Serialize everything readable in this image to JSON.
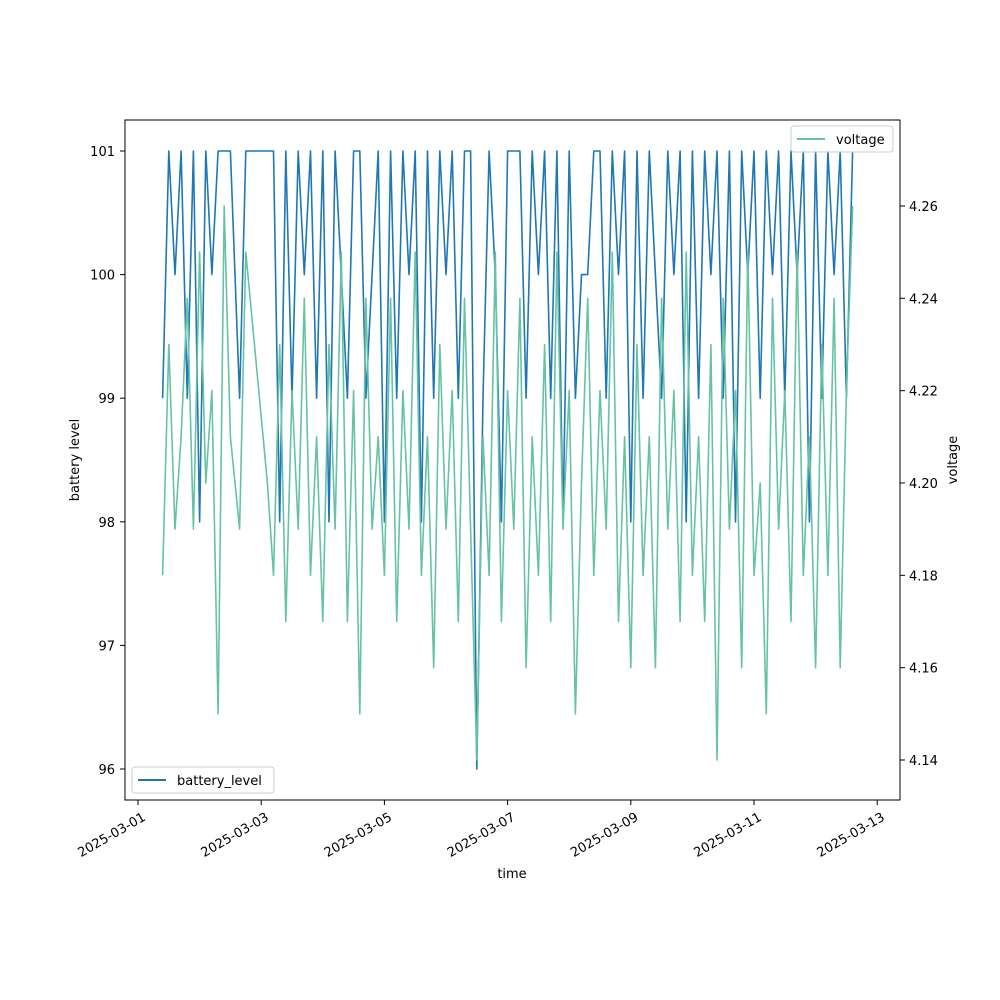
{
  "chart_data": {
    "type": "line",
    "xlabel": "time",
    "ylabel_left": "battery level",
    "ylabel_right": "voltage",
    "x_unit": "days since 2025-03-01 00:00",
    "x_tick_labels": [
      "2025-03-01",
      "2025-03-03",
      "2025-03-05",
      "2025-03-07",
      "2025-03-09",
      "2025-03-11",
      "2025-03-13"
    ],
    "x_tick_values": [
      0,
      2,
      4,
      6,
      8,
      10,
      12
    ],
    "y_left_ticks": [
      "96",
      "97",
      "98",
      "99",
      "100",
      "101"
    ],
    "y_right_ticks": [
      "4.14",
      "4.16",
      "4.18",
      "4.20",
      "4.22",
      "4.24",
      "4.26"
    ],
    "y_left_lim": [
      95.8,
      101.25
    ],
    "y_right_lim": [
      4.133,
      4.279
    ],
    "x": [
      0.4,
      0.5,
      0.6,
      0.7,
      0.8,
      0.9,
      1.0,
      1.1,
      1.2,
      1.3,
      1.4,
      1.5,
      1.65,
      1.75,
      2.1,
      2.2,
      2.3,
      2.4,
      2.5,
      2.6,
      2.7,
      2.8,
      2.9,
      3.0,
      3.1,
      3.2,
      3.3,
      3.4,
      3.5,
      3.6,
      3.7,
      3.8,
      3.9,
      4.0,
      4.1,
      4.2,
      4.3,
      4.4,
      4.5,
      4.6,
      4.7,
      4.8,
      4.9,
      5.0,
      5.1,
      5.2,
      5.3,
      5.4,
      5.5,
      5.6,
      5.7,
      5.8,
      5.9,
      6.0,
      6.1,
      6.2,
      6.3,
      6.4,
      6.5,
      6.6,
      6.7,
      6.8,
      6.9,
      7.0,
      7.1,
      7.2,
      7.3,
      7.4,
      7.5,
      7.6,
      7.7,
      7.8,
      7.9,
      8.0,
      8.1,
      8.2,
      8.3,
      8.4,
      8.5,
      8.6,
      8.7,
      8.8,
      8.9,
      9.0,
      9.1,
      9.2,
      9.3,
      9.4,
      9.5,
      9.6,
      9.7,
      9.8,
      9.9,
      10.0,
      10.1,
      10.2,
      10.3,
      10.4,
      10.5,
      10.6,
      10.7,
      10.8,
      10.9,
      11.0,
      11.1,
      11.2,
      11.3,
      11.4,
      11.5,
      11.6
    ],
    "series": [
      {
        "name": "battery_level",
        "axis": "left",
        "color": "#1f77b4",
        "values": [
          99,
          101,
          100,
          101,
          99,
          101,
          98,
          101,
          100,
          101,
          101,
          101,
          99,
          101,
          101,
          101,
          98,
          101,
          99,
          101,
          100,
          101,
          99,
          101,
          98,
          101,
          100,
          99,
          101,
          101,
          99,
          100,
          101,
          98,
          101,
          99,
          101,
          100,
          101,
          98,
          101,
          99,
          101,
          100,
          101,
          99,
          101,
          101,
          96,
          99,
          101,
          100,
          98,
          101,
          101,
          101,
          99,
          101,
          100,
          101,
          99,
          101,
          98,
          101,
          99,
          100,
          100,
          101,
          101,
          99,
          101,
          100,
          101,
          98,
          101,
          99,
          101,
          100,
          99,
          101,
          100,
          101,
          98,
          101,
          99,
          101,
          100,
          101,
          99,
          101,
          98,
          101,
          100,
          101,
          99,
          101,
          100,
          101,
          99,
          101,
          100,
          101,
          98,
          101,
          99,
          101,
          100,
          101,
          99,
          101
        ]
      },
      {
        "name": "voltage",
        "axis": "right",
        "color": "#66c2a5",
        "values": [
          4.18,
          4.23,
          4.19,
          4.21,
          4.24,
          4.19,
          4.25,
          4.2,
          4.22,
          4.15,
          4.26,
          4.21,
          4.19,
          4.25,
          4.2,
          4.18,
          4.23,
          4.17,
          4.22,
          4.19,
          4.24,
          4.18,
          4.21,
          4.17,
          4.23,
          4.19,
          4.25,
          4.17,
          4.22,
          4.15,
          4.24,
          4.19,
          4.21,
          4.18,
          4.24,
          4.17,
          4.22,
          4.19,
          4.25,
          4.18,
          4.21,
          4.16,
          4.23,
          4.19,
          4.22,
          4.17,
          4.24,
          4.19,
          4.14,
          4.21,
          4.18,
          4.25,
          4.17,
          4.22,
          4.19,
          4.24,
          4.16,
          4.21,
          4.18,
          4.23,
          4.17,
          4.25,
          4.19,
          4.22,
          4.15,
          4.2,
          4.24,
          4.18,
          4.22,
          4.19,
          4.25,
          4.17,
          4.21,
          4.16,
          4.23,
          4.18,
          4.21,
          4.16,
          4.24,
          4.19,
          4.22,
          4.17,
          4.25,
          4.18,
          4.21,
          4.17,
          4.23,
          4.14,
          4.24,
          4.19,
          4.22,
          4.16,
          4.25,
          4.18,
          4.2,
          4.15,
          4.24,
          4.19,
          4.22,
          4.17,
          4.25,
          4.18,
          4.21,
          4.16,
          4.23,
          4.18,
          4.24,
          4.16,
          4.22,
          4.26
        ]
      }
    ],
    "legends": [
      {
        "label": "battery_level",
        "placement": "lower-left"
      },
      {
        "label": "voltage",
        "placement": "upper-right"
      }
    ]
  }
}
